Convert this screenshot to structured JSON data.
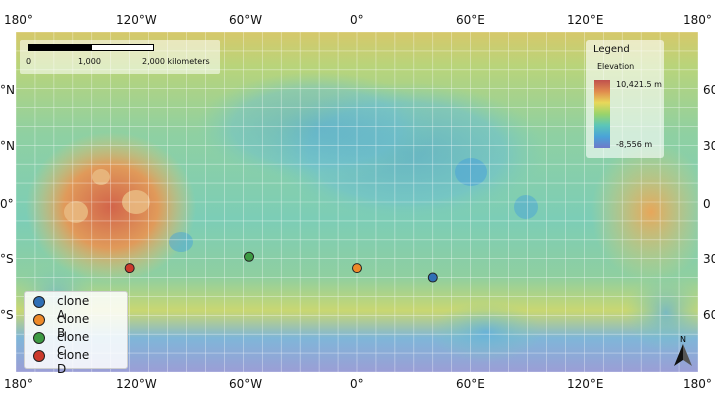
{
  "graticule": {
    "top": [
      "180°",
      "120°W",
      "60°W",
      "0°",
      "60°E",
      "120°E",
      "180°"
    ],
    "bottom": [
      "180°",
      "120°W",
      "60°W",
      "0°",
      "60°E",
      "120°E",
      "180°"
    ],
    "left": [
      "°N",
      "°N",
      "0°",
      "°S",
      "°S"
    ],
    "right": [
      "60",
      "30",
      "0",
      "30",
      "60"
    ]
  },
  "scalebar": {
    "labels": [
      "0",
      "1,000",
      "2,000 kilometers"
    ]
  },
  "legend": {
    "title": "Legend",
    "subtitle": "Elevation",
    "max": "10,421.5 m",
    "min": "-8,556 m",
    "ramp_colors": [
      "#c0504d",
      "#e08a4e",
      "#e8d85a",
      "#9ad46a",
      "#5cc6b8",
      "#4aa3d8",
      "#6f79c9"
    ]
  },
  "clones": [
    {
      "name": "clone A",
      "color": "#2f6fb5",
      "lon": 40,
      "lat": -40
    },
    {
      "name": "clone B",
      "color": "#ee8a2a",
      "lon": 0,
      "lat": -35
    },
    {
      "name": "clone C",
      "color": "#3d9a43",
      "lon": -57,
      "lat": -29
    },
    {
      "name": "clone D",
      "color": "#cc3a2c",
      "lon": -120,
      "lat": -35
    }
  ],
  "north_arrow": {
    "label": "N"
  }
}
